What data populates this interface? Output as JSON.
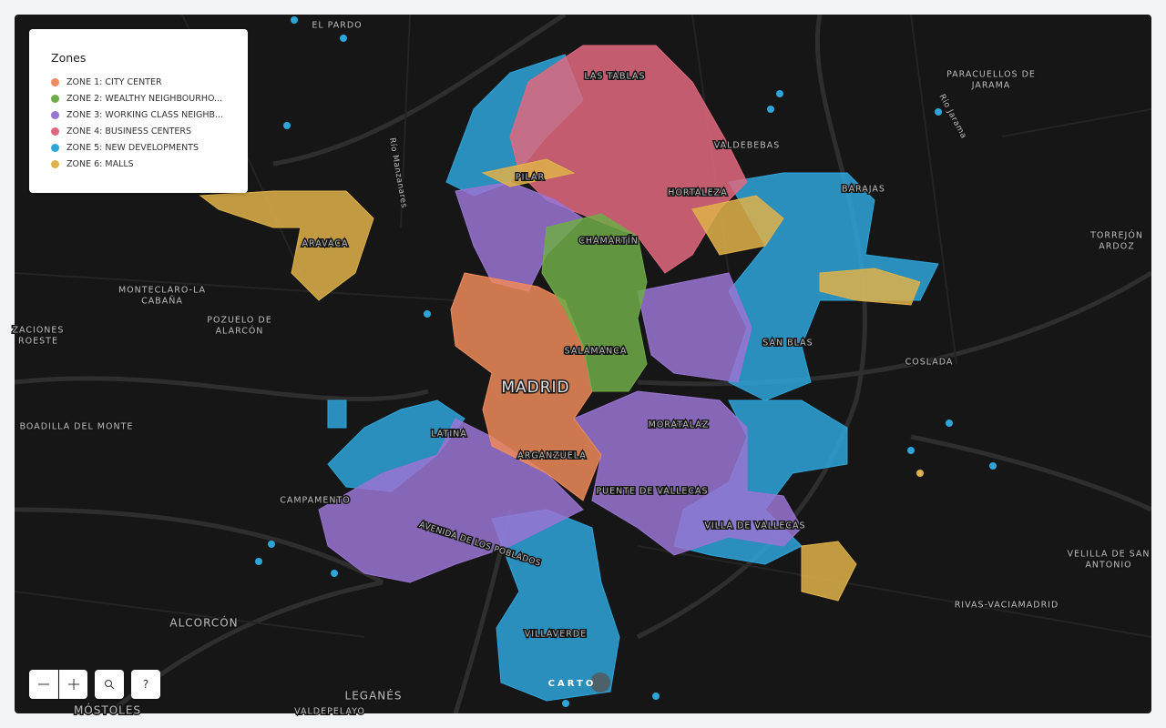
{
  "legend": {
    "title": "Zones",
    "items": [
      {
        "label": "ZONE 1: CITY CENTER",
        "color": "#ee8a5b"
      },
      {
        "label": "ZONE 2: WEALTHY NEIGHBOURHO...",
        "color": "#6fac48"
      },
      {
        "label": "ZONE 3: WORKING CLASS NEIGHB...",
        "color": "#9a74d2"
      },
      {
        "label": "ZONE 4: BUSINESS CENTERS",
        "color": "#e0687e"
      },
      {
        "label": "ZONE 5: NEW DEVELOPMENTS",
        "color": "#2ea5d9"
      },
      {
        "label": "ZONE 6: MALLS",
        "color": "#dfb14a"
      }
    ]
  },
  "map": {
    "places": [
      [
        "EL PARDO"
      ],
      [
        "LAS TABLAS"
      ],
      [
        "PARACUELLOS DE",
        "JARAMA"
      ],
      [
        "VALDEBEBAS"
      ],
      [
        "PILAR"
      ],
      [
        "HORTALEZA"
      ],
      [
        "BARAJAS"
      ],
      [
        "TORREJÓN",
        "ARDOZ"
      ],
      [
        "ARAVACA"
      ],
      [
        "CHAMARTÍN"
      ],
      [
        "MONTECLARO-LA",
        "CABAÑA"
      ],
      [
        "POZUELO DE",
        "ALARCÓN"
      ],
      [
        "ZACIONES",
        "ROESTE"
      ],
      [
        "SAN BLAS"
      ],
      [
        "SALAMANCA"
      ],
      [
        "COSLADA"
      ],
      [
        "MADRID"
      ],
      [
        "BOADILLA DEL MONTE"
      ],
      [
        "MORATALAZ"
      ],
      [
        "LATINA"
      ],
      [
        "ARGANZUELA"
      ],
      [
        "CAMPAMENTO"
      ],
      [
        "PUENTE DE VALLECAS"
      ],
      [
        "VILLA DE VALLECAS"
      ],
      [
        "VELILLA DE SAN",
        "ANTONIO"
      ],
      [
        "RIVAS-VACIAMADRID"
      ],
      [
        "ALCORCÓN"
      ],
      [
        "VILLAVERDE"
      ],
      [
        "LEGANÉS"
      ],
      [
        "MÓSTOLES"
      ],
      [
        "VALDEPELAYO"
      ]
    ],
    "rivers": [
      "Río Manzanares",
      "Río Jarama",
      "AVENIDA DE LOS POBLADOS"
    ]
  },
  "controls": {
    "help": "?"
  },
  "attribution": "CARTO"
}
